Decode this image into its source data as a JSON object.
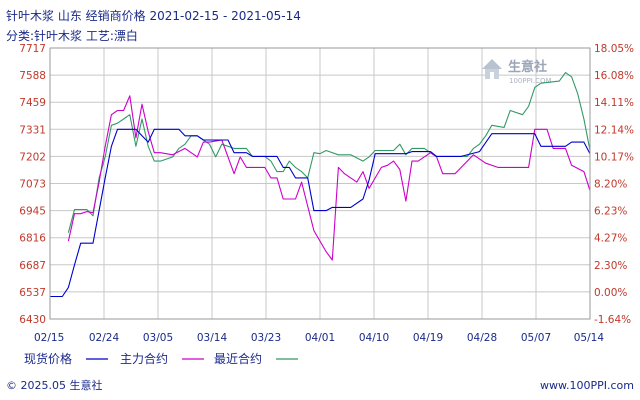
{
  "header": {
    "title": "针叶木浆 山东 经销商价格 2021-02-15 - 2021-05-14",
    "subtitle": "分类:针叶木浆 工艺:漂白"
  },
  "footer": {
    "copyright": "© 2025.05 生意社",
    "url": "www.100PPI.com"
  },
  "watermark": {
    "name": "生意社",
    "url": "100PPI.COM"
  },
  "colors": {
    "spot": "#0000cc",
    "main": "#cc00cc",
    "near": "#339966",
    "tick": "#c0392b",
    "text": "#1a2a8a",
    "grid": "#c8c8c8"
  },
  "chart_data": {
    "type": "line",
    "x_ticks": [
      "02/15",
      "02/24",
      "03/05",
      "03/14",
      "03/23",
      "04/01",
      "04/10",
      "04/19",
      "04/28",
      "05/07",
      "05/14"
    ],
    "x_domain": [
      "2021-02-15",
      "2021-05-14"
    ],
    "y_left_ticks": [
      "7717",
      "7588",
      "7459",
      "7331",
      "7202",
      "7073",
      "6945",
      "6816",
      "6687",
      "6537",
      "6430"
    ],
    "y_right_ticks": [
      "18.05%",
      "16.08%",
      "14.11%",
      "12.14%",
      "10.17%",
      "8.20%",
      "6.23%",
      "4.27%",
      "2.30%",
      "0.00%",
      "-1.64%"
    ],
    "y_left_range": [
      6430,
      7717
    ],
    "y_right_range": [
      -1.64,
      18.05
    ],
    "grid": true,
    "series": [
      {
        "name": "现货价格",
        "color": "#0000cc",
        "points": [
          [
            "2021-02-15",
            6537
          ],
          [
            "2021-02-17",
            6537
          ],
          [
            "2021-02-18",
            6580
          ],
          [
            "2021-02-19",
            6687
          ],
          [
            "2021-02-20",
            6790
          ],
          [
            "2021-02-22",
            6790
          ],
          [
            "2021-02-23",
            6945
          ],
          [
            "2021-02-24",
            7100
          ],
          [
            "2021-02-25",
            7250
          ],
          [
            "2021-02-26",
            7331
          ],
          [
            "2021-03-01",
            7331
          ],
          [
            "2021-03-02",
            7300
          ],
          [
            "2021-03-03",
            7270
          ],
          [
            "2021-03-04",
            7331
          ],
          [
            "2021-03-05",
            7331
          ],
          [
            "2021-03-08",
            7331
          ],
          [
            "2021-03-09",
            7300
          ],
          [
            "2021-03-11",
            7300
          ],
          [
            "2021-03-12",
            7280
          ],
          [
            "2021-03-15",
            7280
          ],
          [
            "2021-03-16",
            7280
          ],
          [
            "2021-03-17",
            7220
          ],
          [
            "2021-03-19",
            7220
          ],
          [
            "2021-03-20",
            7202
          ],
          [
            "2021-03-23",
            7202
          ],
          [
            "2021-03-24",
            7202
          ],
          [
            "2021-03-25",
            7150
          ],
          [
            "2021-03-26",
            7150
          ],
          [
            "2021-03-27",
            7100
          ],
          [
            "2021-03-29",
            7100
          ],
          [
            "2021-03-30",
            6945
          ],
          [
            "2021-04-01",
            6945
          ],
          [
            "2021-04-02",
            6960
          ],
          [
            "2021-04-05",
            6960
          ],
          [
            "2021-04-07",
            7000
          ],
          [
            "2021-04-08",
            7090
          ],
          [
            "2021-04-09",
            7215
          ],
          [
            "2021-04-14",
            7215
          ],
          [
            "2021-04-15",
            7225
          ],
          [
            "2021-04-18",
            7225
          ],
          [
            "2021-04-19",
            7202
          ],
          [
            "2021-04-23",
            7202
          ],
          [
            "2021-04-26",
            7225
          ],
          [
            "2021-04-28",
            7310
          ],
          [
            "2021-05-05",
            7310
          ],
          [
            "2021-05-06",
            7250
          ],
          [
            "2021-05-10",
            7250
          ],
          [
            "2021-05-11",
            7270
          ],
          [
            "2021-05-13",
            7270
          ],
          [
            "2021-05-14",
            7215
          ]
        ]
      },
      {
        "name": "主力合约",
        "color": "#cc00cc",
        "points": [
          [
            "2021-02-18",
            6800
          ],
          [
            "2021-02-19",
            6930
          ],
          [
            "2021-02-20",
            6930
          ],
          [
            "2021-02-21",
            6940
          ],
          [
            "2021-02-22",
            6935
          ],
          [
            "2021-02-23",
            7080
          ],
          [
            "2021-02-24",
            7250
          ],
          [
            "2021-02-25",
            7400
          ],
          [
            "2021-02-26",
            7420
          ],
          [
            "2021-02-27",
            7420
          ],
          [
            "2021-02-28",
            7490
          ],
          [
            "2021-03-01",
            7290
          ],
          [
            "2021-03-02",
            7450
          ],
          [
            "2021-03-03",
            7320
          ],
          [
            "2021-03-04",
            7220
          ],
          [
            "2021-03-05",
            7220
          ],
          [
            "2021-03-07",
            7210
          ],
          [
            "2021-03-09",
            7240
          ],
          [
            "2021-03-11",
            7200
          ],
          [
            "2021-03-12",
            7270
          ],
          [
            "2021-03-13",
            7270
          ],
          [
            "2021-03-15",
            7280
          ],
          [
            "2021-03-16",
            7200
          ],
          [
            "2021-03-17",
            7120
          ],
          [
            "2021-03-18",
            7200
          ],
          [
            "2021-03-19",
            7150
          ],
          [
            "2021-03-20",
            7150
          ],
          [
            "2021-03-22",
            7150
          ],
          [
            "2021-03-23",
            7100
          ],
          [
            "2021-03-24",
            7100
          ],
          [
            "2021-03-25",
            7000
          ],
          [
            "2021-03-27",
            7000
          ],
          [
            "2021-03-28",
            7080
          ],
          [
            "2021-03-30",
            6850
          ],
          [
            "2021-04-01",
            6750
          ],
          [
            "2021-04-02",
            6710
          ],
          [
            "2021-04-03",
            7150
          ],
          [
            "2021-04-04",
            7120
          ],
          [
            "2021-04-05",
            7100
          ],
          [
            "2021-04-06",
            7080
          ],
          [
            "2021-04-07",
            7130
          ],
          [
            "2021-04-08",
            7050
          ],
          [
            "2021-04-09",
            7100
          ],
          [
            "2021-04-10",
            7150
          ],
          [
            "2021-04-11",
            7160
          ],
          [
            "2021-04-12",
            7180
          ],
          [
            "2021-04-13",
            7140
          ],
          [
            "2021-04-14",
            6990
          ],
          [
            "2021-04-15",
            7180
          ],
          [
            "2021-04-16",
            7180
          ],
          [
            "2021-04-18",
            7220
          ],
          [
            "2021-04-19",
            7200
          ],
          [
            "2021-04-20",
            7120
          ],
          [
            "2021-04-22",
            7120
          ],
          [
            "2021-04-24",
            7180
          ],
          [
            "2021-04-25",
            7210
          ],
          [
            "2021-04-27",
            7170
          ],
          [
            "2021-04-29",
            7150
          ],
          [
            "2021-05-04",
            7150
          ],
          [
            "2021-05-05",
            7331
          ],
          [
            "2021-05-07",
            7331
          ],
          [
            "2021-05-08",
            7240
          ],
          [
            "2021-05-10",
            7240
          ],
          [
            "2021-05-11",
            7160
          ],
          [
            "2021-05-13",
            7130
          ],
          [
            "2021-05-14",
            7040
          ]
        ]
      },
      {
        "name": "最近合约",
        "color": "#339966",
        "points": [
          [
            "2021-02-18",
            6840
          ],
          [
            "2021-02-19",
            6950
          ],
          [
            "2021-02-20",
            6950
          ],
          [
            "2021-02-21",
            6950
          ],
          [
            "2021-02-22",
            6920
          ],
          [
            "2021-02-23",
            7100
          ],
          [
            "2021-02-24",
            7200
          ],
          [
            "2021-02-25",
            7350
          ],
          [
            "2021-02-26",
            7360
          ],
          [
            "2021-02-27",
            7380
          ],
          [
            "2021-02-28",
            7400
          ],
          [
            "2021-03-01",
            7250
          ],
          [
            "2021-03-02",
            7380
          ],
          [
            "2021-03-03",
            7250
          ],
          [
            "2021-03-04",
            7180
          ],
          [
            "2021-03-05",
            7180
          ],
          [
            "2021-03-06",
            7190
          ],
          [
            "2021-03-07",
            7200
          ],
          [
            "2021-03-08",
            7240
          ],
          [
            "2021-03-09",
            7260
          ],
          [
            "2021-03-10",
            7300
          ],
          [
            "2021-03-11",
            7300
          ],
          [
            "2021-03-12",
            7280
          ],
          [
            "2021-03-13",
            7260
          ],
          [
            "2021-03-14",
            7200
          ],
          [
            "2021-03-15",
            7260
          ],
          [
            "2021-03-17",
            7240
          ],
          [
            "2021-03-19",
            7240
          ],
          [
            "2021-03-20",
            7202
          ],
          [
            "2021-03-22",
            7202
          ],
          [
            "2021-03-23",
            7180
          ],
          [
            "2021-03-24",
            7130
          ],
          [
            "2021-03-25",
            7130
          ],
          [
            "2021-03-26",
            7180
          ],
          [
            "2021-03-27",
            7150
          ],
          [
            "2021-03-28",
            7130
          ],
          [
            "2021-03-29",
            7100
          ],
          [
            "2021-03-30",
            7220
          ],
          [
            "2021-03-31",
            7215
          ],
          [
            "2021-04-01",
            7230
          ],
          [
            "2021-04-03",
            7210
          ],
          [
            "2021-04-05",
            7210
          ],
          [
            "2021-04-07",
            7180
          ],
          [
            "2021-04-08",
            7200
          ],
          [
            "2021-04-09",
            7230
          ],
          [
            "2021-04-12",
            7230
          ],
          [
            "2021-04-13",
            7260
          ],
          [
            "2021-04-14",
            7210
          ],
          [
            "2021-04-15",
            7240
          ],
          [
            "2021-04-17",
            7240
          ],
          [
            "2021-04-18",
            7220
          ],
          [
            "2021-04-19",
            7202
          ],
          [
            "2021-04-21",
            7202
          ],
          [
            "2021-04-24",
            7202
          ],
          [
            "2021-04-25",
            7240
          ],
          [
            "2021-04-26",
            7260
          ],
          [
            "2021-04-27",
            7300
          ],
          [
            "2021-04-28",
            7350
          ],
          [
            "2021-04-30",
            7340
          ],
          [
            "2021-05-01",
            7420
          ],
          [
            "2021-05-03",
            7400
          ],
          [
            "2021-05-04",
            7440
          ],
          [
            "2021-05-05",
            7530
          ],
          [
            "2021-05-06",
            7550
          ],
          [
            "2021-05-09",
            7560
          ],
          [
            "2021-05-10",
            7600
          ],
          [
            "2021-05-11",
            7580
          ],
          [
            "2021-05-12",
            7500
          ],
          [
            "2021-05-13",
            7380
          ],
          [
            "2021-05-14",
            7230
          ]
        ]
      }
    ]
  }
}
